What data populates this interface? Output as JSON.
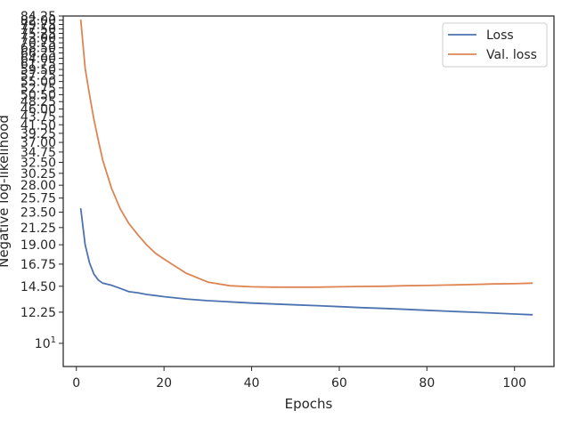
{
  "chart_data": {
    "type": "line",
    "title": "",
    "xlabel": "Epochs",
    "ylabel": "Negative log-likelihood",
    "y_scale": "log",
    "xlim": [
      -3,
      109
    ],
    "ylim": [
      8.6,
      84.25
    ],
    "x_ticks": [
      0,
      20,
      40,
      60,
      80,
      100
    ],
    "x_tick_labels": [
      "0",
      "20",
      "40",
      "60",
      "80",
      "100"
    ],
    "y_ticks": [
      84.25,
      82.0,
      79.75,
      77.5,
      75.25,
      73.0,
      70.75,
      68.5,
      66.25,
      64.0,
      61.75,
      59.5,
      57.25,
      55.0,
      52.75,
      50.5,
      48.25,
      46.0,
      43.75,
      41.5,
      39.25,
      37.0,
      34.75,
      32.5,
      30.25,
      28.0,
      25.75,
      23.5,
      21.25,
      19.0,
      16.75,
      14.5,
      12.25
    ],
    "y_tick_labels": [
      "84.25",
      "82.00",
      "79.75",
      "77.50",
      "75.25",
      "73.00",
      "70.75",
      "68.50",
      "66.25",
      "64.00",
      "61.75",
      "59.50",
      "57.25",
      "55.00",
      "52.75",
      "50.50",
      "48.25",
      "46.00",
      "43.75",
      "41.50",
      "39.25",
      "37.00",
      "34.75",
      "32.50",
      "30.25",
      "28.00",
      "25.75",
      "23.50",
      "21.25",
      "19.00",
      "16.75",
      "14.50",
      "12.25"
    ],
    "y_extra_tick": {
      "value": 10,
      "base": "10",
      "exponent": "1"
    },
    "grid": false,
    "legend_position": "top-right",
    "x": [
      1,
      2,
      3,
      4,
      5,
      6,
      8,
      10,
      12,
      14,
      16,
      18,
      20,
      25,
      30,
      35,
      40,
      45,
      50,
      55,
      60,
      65,
      70,
      75,
      80,
      85,
      90,
      95,
      100,
      104
    ],
    "series": [
      {
        "name": "Loss",
        "color": "#4c72b0",
        "values": [
          24.0,
          19.0,
          16.9,
          15.7,
          15.1,
          14.8,
          14.6,
          14.3,
          14.0,
          13.9,
          13.75,
          13.65,
          13.55,
          13.35,
          13.2,
          13.1,
          13.0,
          12.92,
          12.85,
          12.78,
          12.7,
          12.62,
          12.55,
          12.48,
          12.4,
          12.32,
          12.25,
          12.18,
          12.1,
          12.05
        ]
      },
      {
        "name": "Val. loss",
        "color": "#dd8452",
        "values": [
          82.0,
          60.0,
          50.5,
          43.0,
          37.5,
          33.0,
          27.5,
          24.0,
          21.8,
          20.3,
          19.0,
          18.0,
          17.3,
          15.8,
          14.9,
          14.55,
          14.45,
          14.42,
          14.42,
          14.42,
          14.45,
          14.48,
          14.5,
          14.55,
          14.58,
          14.62,
          14.66,
          14.72,
          14.75,
          14.8
        ]
      }
    ]
  }
}
